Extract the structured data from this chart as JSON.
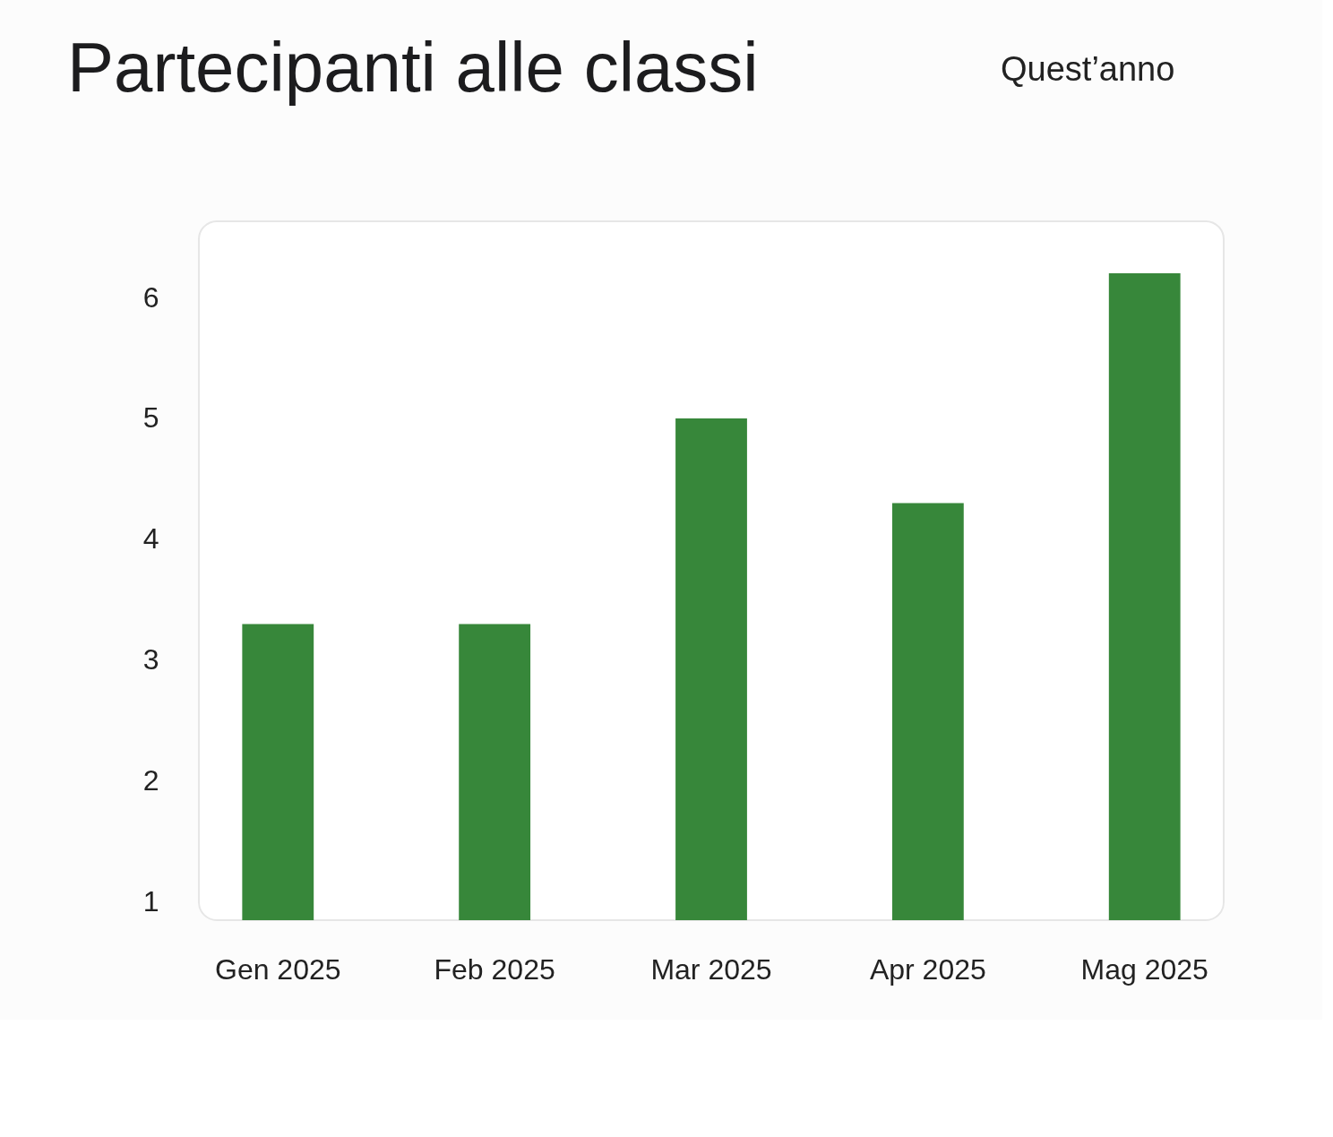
{
  "chart_data": {
    "type": "bar",
    "title": "Partecipanti alle classi",
    "categories": [
      "Gen 2025",
      "Feb 2025",
      "Mar 2025",
      "Apr 2025",
      "Mag 2025"
    ],
    "values": [
      3.3,
      3.3,
      5.0,
      4.3,
      6.2
    ],
    "color": "#37873a",
    "ylim": [
      0.85,
      6.63
    ],
    "yticks": [
      1,
      2,
      3,
      4,
      5,
      6
    ],
    "grid": false,
    "annotations": [
      "Quest’anno"
    ]
  }
}
